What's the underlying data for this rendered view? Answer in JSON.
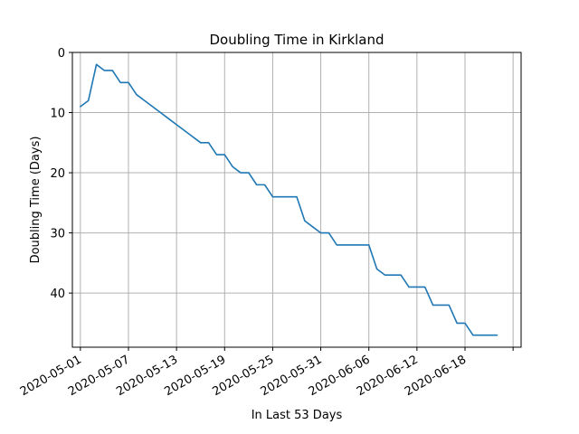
{
  "chart_data": {
    "type": "line",
    "title": "Doubling Time in  Kirkland",
    "xlabel": "In Last 53 Days",
    "ylabel": "Doubling Time (Days)",
    "y_inverted": true,
    "ylim": [
      0,
      49
    ],
    "xlim": [
      "2020-04-30",
      "2020-06-25"
    ],
    "grid": true,
    "x_ticks": [
      "2020-05-01",
      "2020-05-07",
      "2020-05-13",
      "2020-05-19",
      "2020-05-25",
      "2020-05-31",
      "2020-06-06",
      "2020-06-12",
      "2020-06-18",
      "2020-06-24"
    ],
    "x_tick_labels": [
      "2020-05-01",
      "2020-05-07",
      "2020-05-13",
      "2020-05-19",
      "2020-05-25",
      "2020-05-31",
      "2020-06-06",
      "2020-06-12",
      "2020-06-18",
      ""
    ],
    "y_ticks": [
      0,
      10,
      20,
      30,
      40
    ],
    "series": [
      {
        "color": "#1f77b4",
        "x": [
          "2020-05-01",
          "2020-05-02",
          "2020-05-03",
          "2020-05-04",
          "2020-05-05",
          "2020-05-06",
          "2020-05-07",
          "2020-05-08",
          "2020-05-09",
          "2020-05-10",
          "2020-05-11",
          "2020-05-12",
          "2020-05-13",
          "2020-05-14",
          "2020-05-15",
          "2020-05-16",
          "2020-05-17",
          "2020-05-18",
          "2020-05-19",
          "2020-05-20",
          "2020-05-21",
          "2020-05-22",
          "2020-05-23",
          "2020-05-24",
          "2020-05-25",
          "2020-05-26",
          "2020-05-27",
          "2020-05-28",
          "2020-05-29",
          "2020-05-30",
          "2020-05-31",
          "2020-06-01",
          "2020-06-02",
          "2020-06-03",
          "2020-06-04",
          "2020-06-05",
          "2020-06-06",
          "2020-06-07",
          "2020-06-08",
          "2020-06-09",
          "2020-06-10",
          "2020-06-11",
          "2020-06-12",
          "2020-06-13",
          "2020-06-14",
          "2020-06-15",
          "2020-06-16",
          "2020-06-17",
          "2020-06-18",
          "2020-06-19",
          "2020-06-20",
          "2020-06-21",
          "2020-06-22"
        ],
        "values": [
          9,
          8,
          2,
          3,
          3,
          5,
          5,
          7,
          8,
          9,
          10,
          11,
          12,
          13,
          14,
          15,
          15,
          17,
          17,
          19,
          20,
          20,
          22,
          22,
          24,
          24,
          24,
          24,
          28,
          29,
          30,
          30,
          32,
          32,
          32,
          32,
          32,
          36,
          37,
          37,
          37,
          39,
          39,
          39,
          42,
          42,
          42,
          45,
          45,
          47,
          47,
          47,
          47
        ]
      }
    ]
  }
}
